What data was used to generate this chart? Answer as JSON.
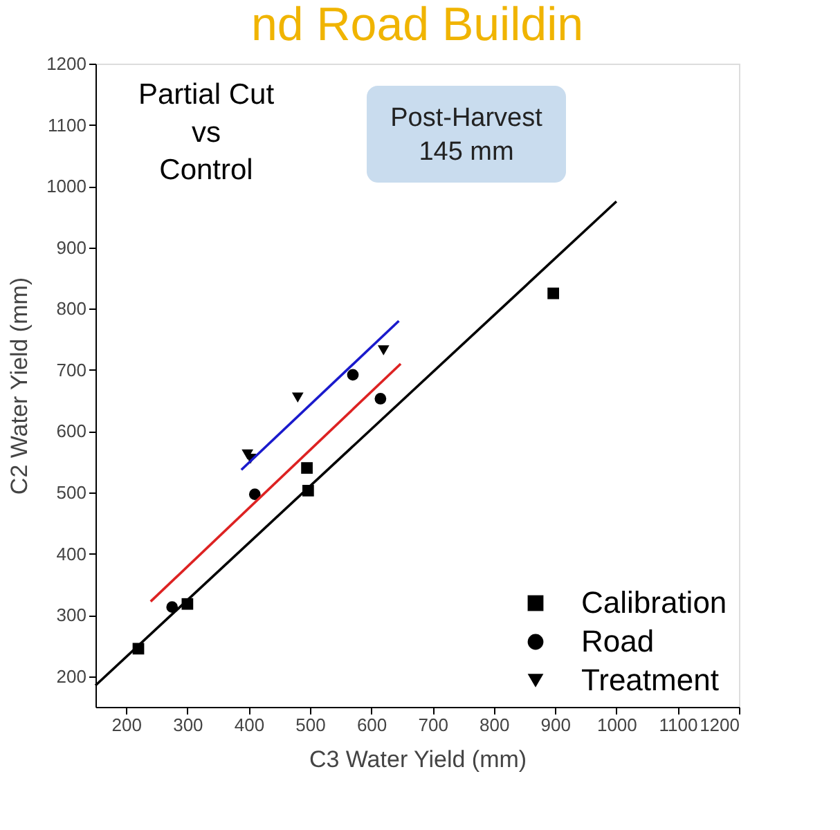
{
  "chart_data": {
    "type": "scatter",
    "title": "nd Road Buildin",
    "xlabel": "C3 Water Yield (mm)",
    "ylabel": "C2 Water Yield (mm)",
    "xlim": [
      150,
      1200
    ],
    "ylim": [
      150,
      1200
    ],
    "xticks": [
      200,
      300,
      400,
      500,
      600,
      700,
      800,
      900,
      1000,
      1100,
      1200
    ],
    "yticks": [
      200,
      300,
      400,
      500,
      600,
      700,
      800,
      900,
      1000,
      1100,
      1200
    ],
    "annotations": [
      "Partial Cut\nvs\nControl",
      "Post-Harvest\n145 mm"
    ],
    "legend": "bottom right",
    "grid": false,
    "series": [
      {
        "name": "Calibration",
        "marker": "square",
        "color": "#000000",
        "x": [
          220,
          300,
          495,
          497,
          897
        ],
        "values": [
          245,
          318,
          540,
          503,
          825
        ]
      },
      {
        "name": "Road",
        "marker": "circle",
        "color": "#000000",
        "x": [
          275,
          410,
          570,
          615
        ],
        "values": [
          313,
          497,
          692,
          653
        ]
      },
      {
        "name": "Treatment",
        "marker": "triangle",
        "color": "#000000",
        "x": [
          398,
          403,
          480,
          620
        ],
        "values": [
          562,
          555,
          655,
          732
        ]
      },
      {
        "type": "line",
        "color": "#000000",
        "x": [
          150,
          1000
        ],
        "values": [
          185,
          975
        ]
      },
      {
        "type": "line",
        "color": "#dd2222",
        "x": [
          240,
          648
        ],
        "values": [
          322,
          710
        ]
      },
      {
        "type": "line",
        "color": "#1a1acc",
        "x": [
          388,
          645
        ],
        "values": [
          537,
          780
        ]
      }
    ]
  }
}
